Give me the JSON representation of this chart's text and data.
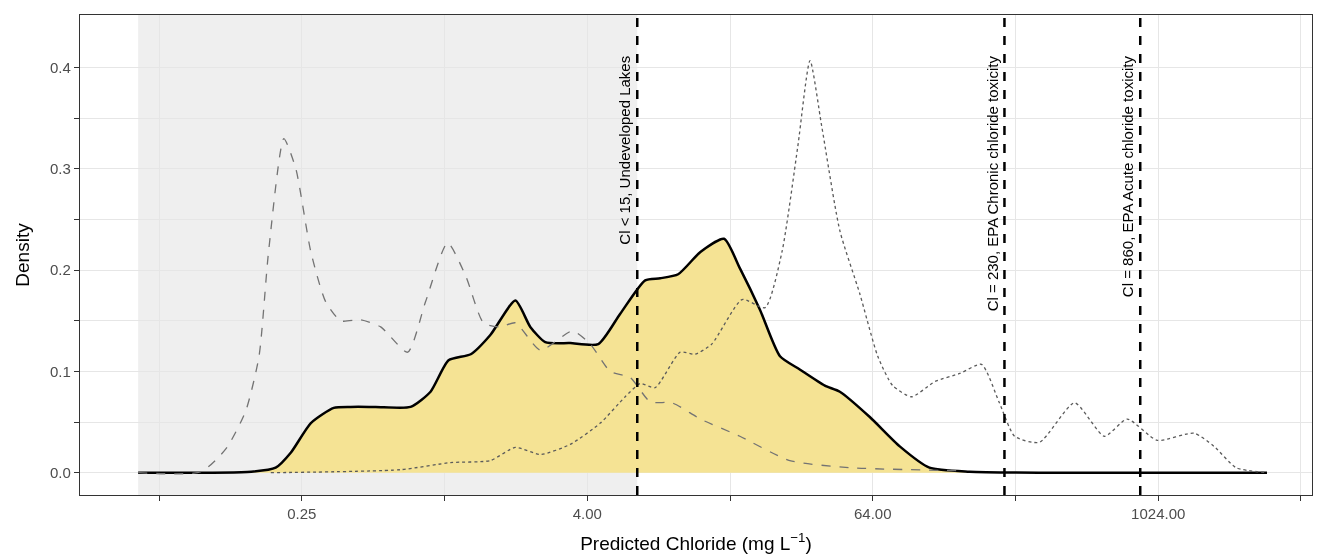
{
  "chart_data": {
    "type": "line",
    "xlabel": "Predicted Chloride (mg L$^{−1}$)",
    "ylabel": "Density",
    "log": "x",
    "grid": true,
    "xlim": [
      0.029,
      4560
    ],
    "ylim": [
      -0.022,
      0.452
    ],
    "xticks": [
      {
        "value": 0.0625,
        "label": null
      },
      {
        "value": 0.25,
        "label": "0.25"
      },
      {
        "value": 1,
        "label": null
      },
      {
        "value": 4,
        "label": "4.00"
      },
      {
        "value": 16,
        "label": null
      },
      {
        "value": 64,
        "label": "64.00"
      },
      {
        "value": 256,
        "label": null
      },
      {
        "value": 1024,
        "label": "1024.00"
      },
      {
        "value": 4096,
        "label": null
      }
    ],
    "yticks": [
      {
        "value": 0,
        "label": "0.0"
      },
      {
        "value": 0.05,
        "label": null
      },
      {
        "value": 0.1,
        "label": "0.1"
      },
      {
        "value": 0.15,
        "label": null
      },
      {
        "value": 0.2,
        "label": "0.2"
      },
      {
        "value": 0.25,
        "label": null
      },
      {
        "value": 0.3,
        "label": "0.3"
      },
      {
        "value": 0.35,
        "label": null
      },
      {
        "value": 0.4,
        "label": "0.4"
      }
    ],
    "bands": [
      {
        "axis": "x",
        "from": 0.051,
        "to": 6.5,
        "label": null,
        "color": "#ebebeb"
      }
    ],
    "ref_lines": [
      {
        "axis": "x",
        "value": 6.5,
        "label": "Cl < 15, Undeveloped Lakes",
        "color": "#000000",
        "line_style": "dashed"
      },
      {
        "axis": "x",
        "value": 230,
        "label": "Cl = 230, EPA Chronic chloride toxicity",
        "color": "#000000",
        "line_style": "dashed"
      },
      {
        "axis": "x",
        "value": 860,
        "label": "Cl = 860, EPA Acute chloride toxicity",
        "color": "#000000",
        "line_style": "dashed"
      }
    ],
    "series": [
      {
        "type": "area",
        "color": "#f5e394",
        "line_style": "solid",
        "x": [
          0.051,
          0.153,
          0.194,
          0.225,
          0.273,
          0.341,
          0.402,
          0.512,
          0.719,
          0.873,
          1.04,
          1.29,
          1.56,
          1.99,
          2.3,
          2.66,
          3.39,
          4.45,
          5.51,
          7.02,
          8.12,
          9.67,
          12.0,
          15.1,
          17.6,
          21.4,
          26.0,
          31.5,
          40.2,
          46.5,
          62.2,
          83.2,
          111,
          164,
          356,
          2945
        ],
        "values": [
          0,
          0.001,
          0.005,
          0.02,
          0.049,
          0.064,
          0.065,
          0.065,
          0.065,
          0.08,
          0.111,
          0.117,
          0.136,
          0.17,
          0.144,
          0.129,
          0.128,
          0.127,
          0.157,
          0.19,
          0.192,
          0.196,
          0.218,
          0.231,
          0.202,
          0.161,
          0.115,
          0.102,
          0.086,
          0.08,
          0.055,
          0.026,
          0.005,
          0.001,
          0,
          0
        ]
      },
      {
        "type": "line",
        "color": "#737373",
        "line_style": "dashed",
        "x": [
          0.051,
          0.094,
          0.12,
          0.145,
          0.165,
          0.181,
          0.21,
          0.236,
          0.273,
          0.315,
          0.365,
          0.443,
          0.538,
          0.699,
          0.832,
          1.03,
          1.23,
          1.46,
          1.72,
          1.99,
          2.54,
          3.46,
          4.12,
          5.0,
          6.07,
          7.37,
          9.12,
          12.0,
          17.6,
          28.6,
          51.2,
          149
        ],
        "values": [
          0,
          0.001,
          0.024,
          0.061,
          0.115,
          0.218,
          0.33,
          0.3,
          0.218,
          0.169,
          0.15,
          0.151,
          0.144,
          0.119,
          0.169,
          0.227,
          0.194,
          0.148,
          0.144,
          0.148,
          0.121,
          0.14,
          0.127,
          0.1,
          0.094,
          0.07,
          0.069,
          0.053,
          0.036,
          0.012,
          0.005,
          0.002
        ]
      },
      {
        "type": "line",
        "color": "#5a5a5a",
        "line_style": "dotted",
        "x": [
          0.185,
          0.653,
          1.06,
          1.56,
          1.99,
          2.54,
          3.39,
          4.54,
          5.78,
          6.69,
          7.73,
          9.86,
          11.4,
          13.4,
          18.0,
          22.5,
          26.5,
          30.9,
          34.8,
          39.0,
          46.5,
          56.4,
          67.2,
          77.7,
          93.4,
          117,
          149,
          184,
          219,
          254,
          323,
          454,
          607,
          758,
          1014,
          1451,
          1762,
          2181,
          2945
        ],
        "values": [
          0,
          0.003,
          0.01,
          0.012,
          0.025,
          0.018,
          0.028,
          0.049,
          0.075,
          0.088,
          0.084,
          0.119,
          0.117,
          0.127,
          0.171,
          0.163,
          0.218,
          0.322,
          0.407,
          0.342,
          0.239,
          0.177,
          0.115,
          0.086,
          0.075,
          0.09,
          0.098,
          0.107,
          0.069,
          0.036,
          0.03,
          0.069,
          0.036,
          0.053,
          0.032,
          0.039,
          0.026,
          0.005,
          0
        ]
      }
    ]
  }
}
